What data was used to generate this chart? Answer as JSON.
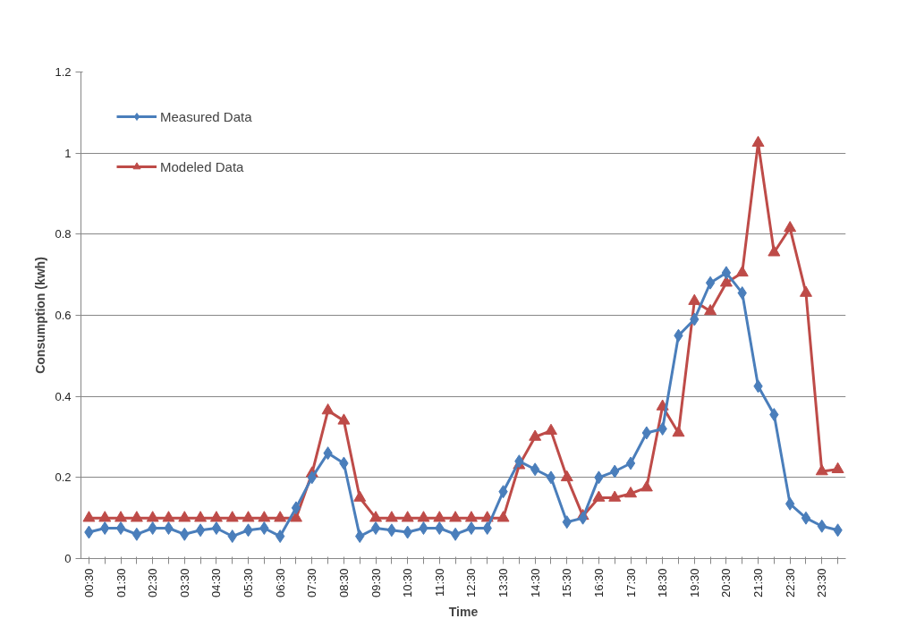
{
  "chart_data": {
    "type": "line",
    "xlabel": "Time",
    "ylabel": "Consumption (kwh)",
    "categories": [
      "00:30",
      null,
      "01:30",
      null,
      "02:30",
      null,
      "03:30",
      null,
      "04:30",
      null,
      "05:30",
      null,
      "06:30",
      null,
      "07:30",
      null,
      "08:30",
      null,
      "09:30",
      null,
      "10:30",
      null,
      "11:30",
      null,
      "12:30",
      null,
      "13:30",
      null,
      "14:30",
      null,
      "15:30",
      null,
      "16:30",
      null,
      "17:30",
      null,
      "18:30",
      null,
      "19:30",
      null,
      "20:30",
      null,
      "21:30",
      null,
      "22:30",
      null,
      "23:30",
      null
    ],
    "series": [
      {
        "name": "Measured Data",
        "color": "#4a7ebb",
        "marker": "diamond",
        "values": [
          0.065,
          0.075,
          0.075,
          0.06,
          0.075,
          0.075,
          0.06,
          0.07,
          0.075,
          0.055,
          0.07,
          0.075,
          0.055,
          0.125,
          0.2,
          0.26,
          0.235,
          0.055,
          0.075,
          0.07,
          0.065,
          0.075,
          0.075,
          0.06,
          0.075,
          0.075,
          0.165,
          0.24,
          0.22,
          0.2,
          0.09,
          0.1,
          0.2,
          0.215,
          0.235,
          0.31,
          0.32,
          0.55,
          0.59,
          0.68,
          0.705,
          0.655,
          0.425,
          0.355,
          0.135,
          0.1,
          0.08,
          0.07
        ]
      },
      {
        "name": "Modeled Data",
        "color": "#be4b48",
        "marker": "triangle",
        "values": [
          0.1,
          0.1,
          0.1,
          0.1,
          0.1,
          0.1,
          0.1,
          0.1,
          0.1,
          0.1,
          0.1,
          0.1,
          0.1,
          0.1,
          0.21,
          0.365,
          0.34,
          0.15,
          0.1,
          0.1,
          0.1,
          0.1,
          0.1,
          0.1,
          0.1,
          0.1,
          0.1,
          0.23,
          0.3,
          0.315,
          0.2,
          0.105,
          0.15,
          0.15,
          0.16,
          0.175,
          0.375,
          0.31,
          0.635,
          0.61,
          0.68,
          0.705,
          1.025,
          0.755,
          0.815,
          0.655,
          0.215,
          0.22
        ]
      }
    ],
    "ylim": [
      0,
      1.2
    ],
    "yticks": [
      0,
      0.2,
      0.4,
      0.6,
      0.8,
      1,
      1.2
    ],
    "grid": "y",
    "legend": "top left",
    "line_style": "solid"
  }
}
